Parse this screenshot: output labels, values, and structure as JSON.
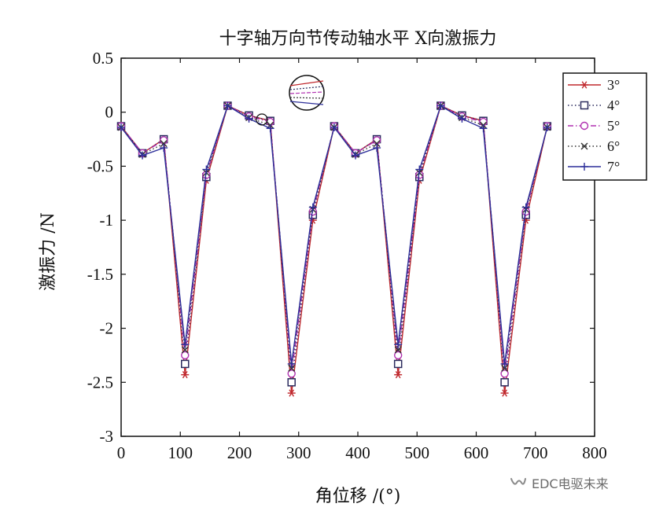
{
  "chart_data": {
    "type": "line",
    "title": "十字轴万向节传动轴水平 X向激振力",
    "xlabel": "角位移 /(°)",
    "ylabel": "激振力 /N",
    "xlim": [
      0,
      800
    ],
    "ylim": [
      -3,
      0.5
    ],
    "xticks": [
      0,
      100,
      200,
      300,
      400,
      500,
      600,
      700,
      800
    ],
    "yticks": [
      0.5,
      0,
      -0.5,
      -1,
      -1.5,
      -2,
      -2.5,
      -3
    ],
    "xtick_labels": [
      "0",
      "100",
      "200",
      "300",
      "400",
      "500",
      "600",
      "700",
      "800"
    ],
    "ytick_labels": [
      "0.5",
      "0",
      "-0.5",
      "-1",
      "-1.5",
      "-2",
      "-2.5",
      "-3"
    ],
    "grid": false,
    "legend_position": "top-right",
    "x": [
      0,
      36,
      72,
      108,
      144,
      180,
      216,
      252,
      288,
      324,
      360,
      396,
      432,
      468,
      504,
      540,
      576,
      612,
      648,
      684,
      720
    ],
    "series": [
      {
        "name": "3°",
        "color": "#c0282d",
        "marker": "star",
        "dash": "solid",
        "values": [
          -0.13,
          -0.38,
          -0.25,
          -2.43,
          -0.63,
          0.06,
          -0.03,
          -0.08,
          -2.6,
          -1.0,
          -0.13,
          -0.38,
          -0.25,
          -2.43,
          -0.63,
          0.06,
          -0.03,
          -0.08,
          -2.6,
          -1.0,
          -0.13
        ]
      },
      {
        "name": "4°",
        "color": "#2b2b5e",
        "marker": "square",
        "dash": "dotted",
        "values": [
          -0.13,
          -0.38,
          -0.25,
          -2.33,
          -0.6,
          0.06,
          -0.03,
          -0.08,
          -2.5,
          -0.95,
          -0.13,
          -0.38,
          -0.25,
          -2.33,
          -0.6,
          0.06,
          -0.03,
          -0.08,
          -2.5,
          -0.95,
          -0.13
        ]
      },
      {
        "name": "5°",
        "color": "#b030b0",
        "marker": "circle",
        "dash": "dashdot",
        "values": [
          -0.13,
          -0.38,
          -0.26,
          -2.25,
          -0.58,
          0.06,
          -0.04,
          -0.09,
          -2.42,
          -0.92,
          -0.13,
          -0.38,
          -0.26,
          -2.25,
          -0.58,
          0.06,
          -0.04,
          -0.09,
          -2.42,
          -0.92,
          -0.13
        ]
      },
      {
        "name": "6°",
        "color": "#333333",
        "marker": "x",
        "dash": "dotted",
        "values": [
          -0.14,
          -0.39,
          -0.29,
          -2.2,
          -0.56,
          0.06,
          -0.05,
          -0.12,
          -2.37,
          -0.9,
          -0.14,
          -0.39,
          -0.29,
          -2.2,
          -0.56,
          0.06,
          -0.05,
          -0.12,
          -2.37,
          -0.9,
          -0.14
        ]
      },
      {
        "name": "7°",
        "color": "#2d2f9a",
        "marker": "plus",
        "dash": "solid",
        "values": [
          -0.14,
          -0.4,
          -0.33,
          -2.15,
          -0.53,
          0.06,
          -0.06,
          -0.15,
          -2.33,
          -0.88,
          -0.14,
          -0.4,
          -0.33,
          -2.15,
          -0.53,
          0.06,
          -0.06,
          -0.15,
          -2.33,
          -0.88,
          -0.14
        ]
      }
    ]
  },
  "watermark": {
    "text": "EDC电驱未来",
    "icon": "wechat-channel-icon"
  }
}
